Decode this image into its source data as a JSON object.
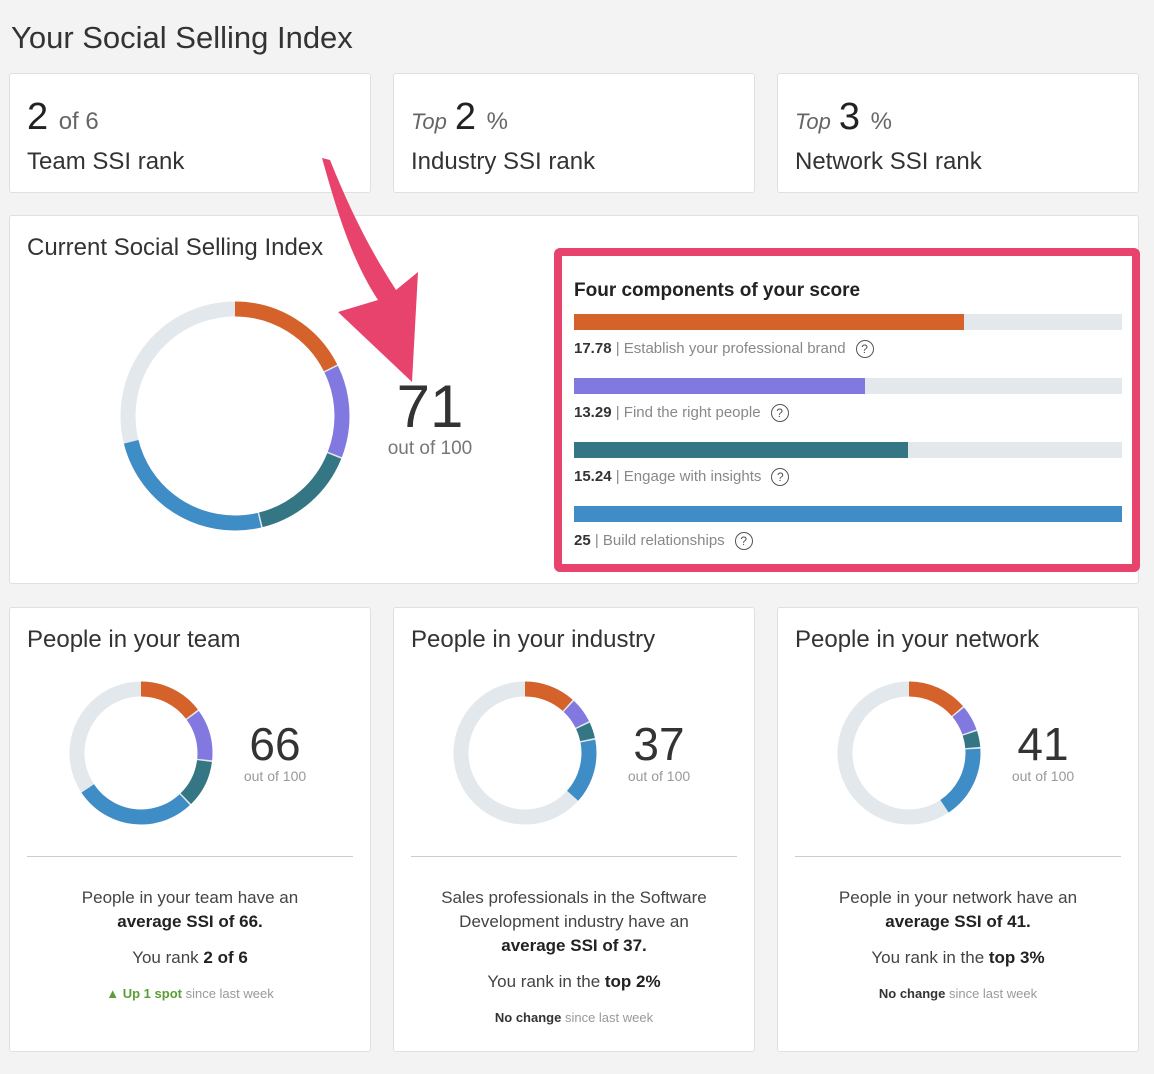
{
  "page_title": "Your Social Selling Index",
  "colors": {
    "brand": "#d5622a",
    "people": "#8179e0",
    "insights": "#357684",
    "relationships": "#3f8dc6",
    "track": "#e3e8ec",
    "highlight": "#e8436c",
    "up": "#5a9e35"
  },
  "ranks": [
    {
      "prefix": "",
      "value": "2",
      "suffix": "of 6",
      "label": "Team SSI rank"
    },
    {
      "prefix": "Top",
      "value": "2",
      "suffix": "%",
      "label": "Industry SSI rank"
    },
    {
      "prefix": "Top",
      "value": "3",
      "suffix": "%",
      "label": "Network SSI rank"
    }
  ],
  "current": {
    "title": "Current Social Selling Index",
    "score": "71",
    "out_of": "out of 100",
    "components_title": "Four components of your score",
    "components": [
      {
        "value": 17.78,
        "value_text": "17.78",
        "label": "| Establish your professional brand",
        "max": 25,
        "color": "#d5622a",
        "icon": "help-circle-icon"
      },
      {
        "value": 13.29,
        "value_text": "13.29",
        "label": "| Find the right people",
        "max": 25,
        "color": "#8179e0",
        "icon": "help-circle-icon"
      },
      {
        "value": 15.24,
        "value_text": "15.24",
        "label": "| Engage with insights",
        "max": 25,
        "color": "#357684",
        "icon": "help-circle-icon"
      },
      {
        "value": 25,
        "value_text": "25",
        "label": "| Build relationships",
        "max": 25,
        "color": "#3f8dc6",
        "icon": "help-circle-icon"
      }
    ]
  },
  "peers": [
    {
      "title": "People in your team",
      "score": "66",
      "out_of": "out of 100",
      "segments": [
        15,
        12,
        11,
        28
      ],
      "desc_lines": [
        "People in your team have an"
      ],
      "desc_bold": "average SSI of 66.",
      "rank_text": "You rank ",
      "rank_bold": "2 of 6",
      "change_bold": "▲ Up 1 spot",
      "change_rest": " since last week",
      "change_up": true
    },
    {
      "title": "People in your industry",
      "score": "37",
      "out_of": "out of 100",
      "segments": [
        12,
        6,
        4,
        15
      ],
      "desc_lines": [
        "Sales professionals in the Software",
        "Development industry have an"
      ],
      "desc_bold": "average SSI of 37.",
      "rank_text": "You rank in the ",
      "rank_bold": "top 2%",
      "change_bold": "No change",
      "change_rest": " since last week",
      "change_up": false
    },
    {
      "title": "People in your network",
      "score": "41",
      "out_of": "out of 100",
      "segments": [
        14,
        6,
        4,
        17
      ],
      "desc_lines": [
        "People in your network have an"
      ],
      "desc_bold": "average SSI of 41.",
      "rank_text": "You rank in the ",
      "rank_bold": "top 3%",
      "change_bold": "No change",
      "change_rest": " since last week",
      "change_up": false
    }
  ]
}
